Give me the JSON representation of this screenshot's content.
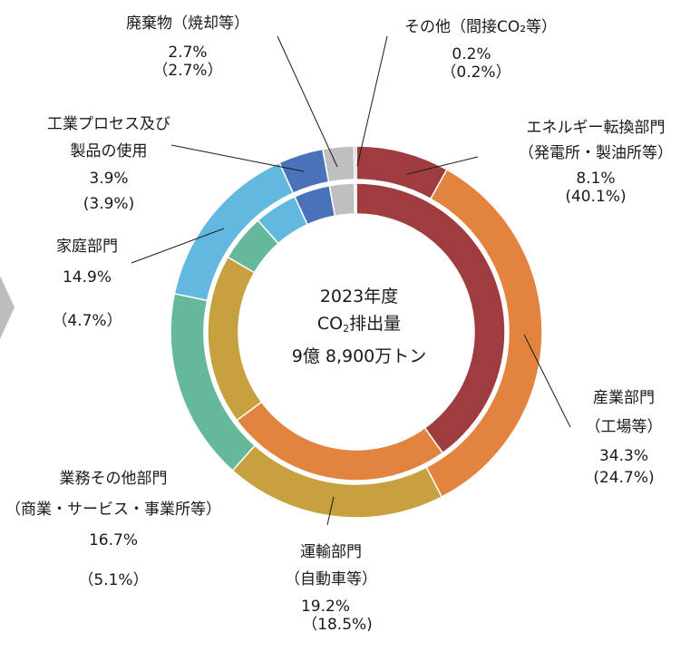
{
  "chart_data": {
    "type": "pie",
    "variant": "double-donut",
    "center_text": {
      "line1": "2023年度",
      "line2_a": "CO",
      "line2_sub": "2",
      "line2_b": "排出量",
      "line3": "9億 8,900万トン"
    },
    "slices": [
      {
        "name_lines": [
          "エネルギー転換部門",
          "（発電所・製油所等）"
        ],
        "outer_value": 8.1,
        "inner_value": 40.1,
        "outer_label": "8.1%",
        "inner_label": "(40.1%)",
        "color": "#9e3c3f"
      },
      {
        "name_lines": [
          "産業部門",
          "（工場等）"
        ],
        "outer_value": 34.3,
        "inner_value": 24.7,
        "outer_label": "34.3%",
        "inner_label": "(24.7%)",
        "color": "#e2843f"
      },
      {
        "name_lines": [
          "運輸部門",
          "（自動車等）"
        ],
        "outer_value": 19.2,
        "inner_value": 18.5,
        "outer_label": "19.2%",
        "inner_label": "（18.5%)",
        "color": "#c7a040"
      },
      {
        "name_lines": [
          "業務その他部門",
          "（商業・サービス・事業所等）"
        ],
        "outer_value": 16.7,
        "inner_value": 5.1,
        "outer_label": "16.7%",
        "inner_label": "（5.1%）",
        "color": "#66b89a"
      },
      {
        "name_lines": [
          "家庭部門"
        ],
        "outer_value": 14.9,
        "inner_value": 4.7,
        "outer_label": "14.9%",
        "inner_label": "（4.7%）",
        "color": "#63b8e0"
      },
      {
        "name_lines": [
          "工業プロセス及び",
          "製品の使用"
        ],
        "outer_value": 3.9,
        "inner_value": 3.9,
        "outer_label": "3.9%",
        "inner_label": "(3.9%)",
        "color": "#4a72b8"
      },
      {
        "name_lines": [
          "廃棄物（焼却等）"
        ],
        "outer_value": 2.7,
        "inner_value": 2.7,
        "outer_label": "2.7%",
        "inner_label": "（2.7%）",
        "color": "#bfbfbf"
      },
      {
        "name_lines": [
          "その他（間接CO₂等）"
        ],
        "outer_value": 0.2,
        "inner_value": 0.2,
        "outer_label": "0.2%",
        "inner_label": "（0.2%）",
        "color": "#bfbfbf"
      }
    ]
  }
}
